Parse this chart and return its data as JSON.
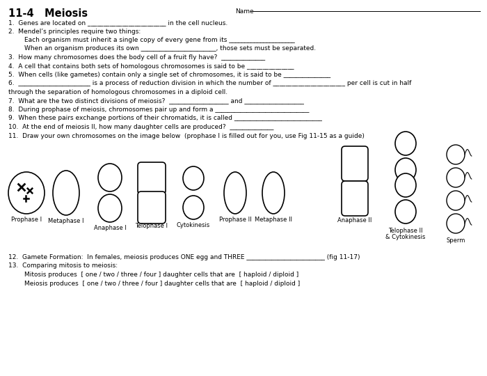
{
  "title": "11-4   Meiosis",
  "name_label": "Name",
  "background_color": "#ffffff",
  "text_color": "#000000",
  "q1": "1.  Genes are located on _________________________ in the cell nucleus.",
  "q2": "2.  Mendel’s principles require two things:",
  "q2a": "        Each organism must inherit a single copy of every gene from its _____________________",
  "q2b": "        When an organism produces its own ________________________, those sets must be separated.",
  "q3": "3.  How many chromosomes does the body cell of a fruit fly have?  ______________",
  "q4": "4.  A cell that contains both sets of homologous chromosomes is said to be _______________",
  "q5": "5.  When cells (like gametes) contain only a single set of chromosomes, it is said to be _______________",
  "q6a": "6.  _______________________ is a process of reduction division in which the number of _______________________ per cell is cut in half",
  "q6b": "through the separation of homologous chromosomes in a diploid cell.",
  "q7": "7.  What are the two distinct divisions of meiosis?  ___________________ and ___________________",
  "q8": "8.  During prophase of meiosis, chromosomes pair up and form a ______________________________",
  "q9": "9.  When these pairs exchange portions of their chromatids, it is called ____________________________",
  "q10": "10.  At the end of meiosis II, how many daughter cells are produced?  ______________",
  "q11": "11.  Draw your own chromosomes on the image below  (prophase I is filled out for you, use Fig 11-15 as a guide)",
  "q12": "12.  Gamete Formation:  In females, meiosis produces ONE egg and THREE _________________________ (fig 11-17)",
  "q13_header": "13.  Comparing mitosis to meiosis:",
  "q13_mitosis": "        Mitosis produces  [ one / two / three / four ] daughter cells that are  [ haploid / diploid ]",
  "q13_meiosis": "        Meiosis produces  [ one / two / three / four ] daughter cells that are  [ haploid / diploid ]"
}
